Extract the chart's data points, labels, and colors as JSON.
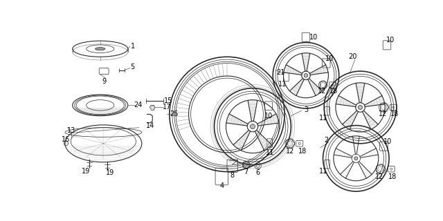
{
  "background_color": "#ffffff",
  "line_color": "#2a2a2a",
  "label_color": "#000000",
  "fig_width": 6.4,
  "fig_height": 3.2,
  "dpi": 100
}
